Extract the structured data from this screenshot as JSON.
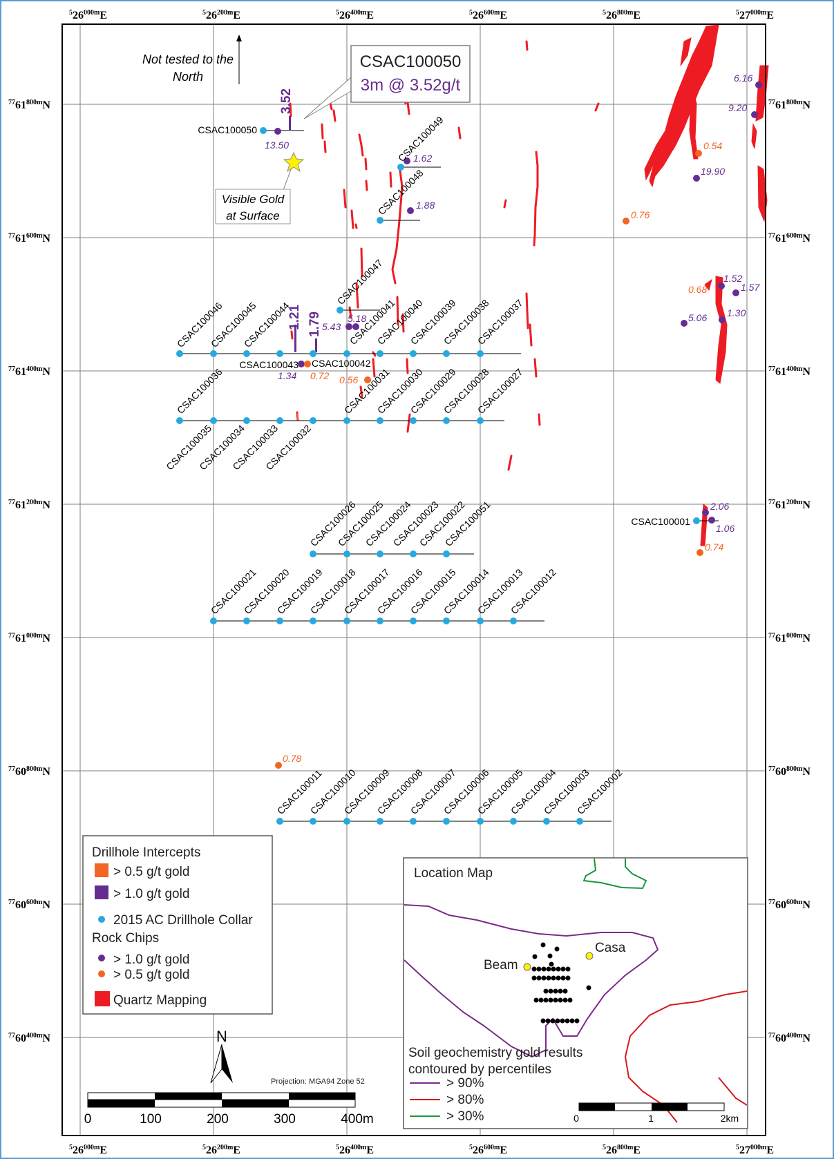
{
  "easting_labels": [
    {
      "prefix": "5",
      "main": "26",
      "sup": "000m",
      "suffix": "E"
    },
    {
      "prefix": "5",
      "main": "26",
      "sup": "200m",
      "suffix": "E"
    },
    {
      "prefix": "5",
      "main": "26",
      "sup": "400m",
      "suffix": "E"
    },
    {
      "prefix": "5",
      "main": "26",
      "sup": "600m",
      "suffix": "E"
    },
    {
      "prefix": "5",
      "main": "26",
      "sup": "800m",
      "suffix": "E"
    },
    {
      "prefix": "5",
      "main": "27",
      "sup": "000m",
      "suffix": "E"
    }
  ],
  "northing_labels": [
    {
      "prefix": "77",
      "main": "61",
      "sup": "800m",
      "suffix": "N"
    },
    {
      "prefix": "77",
      "main": "61",
      "sup": "600m",
      "suffix": "N"
    },
    {
      "prefix": "77",
      "main": "61",
      "sup": "400m",
      "suffix": "N"
    },
    {
      "prefix": "77",
      "main": "61",
      "sup": "200m",
      "suffix": "N"
    },
    {
      "prefix": "77",
      "main": "61",
      "sup": "000m",
      "suffix": "N"
    },
    {
      "prefix": "77",
      "main": "60",
      "sup": "800m",
      "suffix": "N"
    },
    {
      "prefix": "77",
      "main": "60",
      "sup": "600m",
      "suffix": "N"
    },
    {
      "prefix": "77",
      "main": "60",
      "sup": "400m",
      "suffix": "N"
    }
  ],
  "annotations": {
    "not_tested_line1": "Not tested to the",
    "not_tested_line2": "North",
    "callout_hole": "CSAC100050",
    "callout_result": "3m @ 3.52g/t",
    "visible_gold_line1": "Visible Gold",
    "visible_gold_line2": "at Surface",
    "projection": "Projection: MGA94 Zone 52"
  },
  "drillholes": {
    "row1800": [
      "CSAC100050"
    ],
    "row1720": [
      "CSAC100049",
      "CSAC100048"
    ],
    "row1460_upper": [
      "CSAC100047"
    ],
    "row1420": [
      "CSAC100046",
      "CSAC100045",
      "CSAC100044",
      "CSAC100043",
      "CSAC100042",
      "CSAC100041",
      "CSAC100040",
      "CSAC100039",
      "CSAC100038",
      "CSAC100037"
    ],
    "row1320_top": [
      "CSAC100036",
      "CSAC100031",
      "CSAC100030",
      "CSAC100029",
      "CSAC100028",
      "CSAC100027"
    ],
    "row1320_bottom": [
      "CSAC100035",
      "CSAC100034",
      "CSAC100033",
      "CSAC100032"
    ],
    "row1150": [
      "CSAC100026",
      "CSAC100025",
      "CSAC100024",
      "CSAC100023",
      "CSAC100022",
      "CSAC100051"
    ],
    "row1020": [
      "CSAC100021",
      "CSAC100020",
      "CSAC100019",
      "CSAC100018",
      "CSAC100017",
      "CSAC100016",
      "CSAC100015",
      "CSAC100014",
      "CSAC100013",
      "CSAC100012"
    ],
    "row720": [
      "CSAC100011",
      "CSAC100010",
      "CSAC100009",
      "CSAC100008",
      "CSAC100007",
      "CSAC100006",
      "CSAC100005",
      "CSAC100004",
      "CSAC100003",
      "CSAC100002"
    ],
    "east": "CSAC100001"
  },
  "intercepts": {
    "i352": "3.52",
    "i121": "1.21",
    "i179": "1.79"
  },
  "rock_chips": {
    "v1350": "13.50",
    "v162": "1.62",
    "v188": "1.88",
    "v543": "5.43",
    "v518": "5.18",
    "v134": "1.34",
    "v072": "0.72",
    "v056": "0.56",
    "v616": "6.16",
    "v920": "9.20",
    "v054": "0.54",
    "v1990": "19.90",
    "v076": "0.76",
    "v152": "1.52",
    "v068": "0.68",
    "v157": "1.57",
    "v506": "5.06",
    "v130": "1.30",
    "v206": "2.06",
    "v106": "1.06",
    "v074": "0.74",
    "v078": "0.78"
  },
  "legend": {
    "title": "Drillhole Intercepts",
    "gt05": "> 0.5 g/t gold",
    "gt10": "> 1.0 g/t gold",
    "collar": "2015 AC Drillhole Collar",
    "rock_title": "Rock Chips",
    "rock_gt10": "> 1.0 g/t gold",
    "rock_gt05": "> 0.5 g/t gold",
    "quartz": "Quartz Mapping"
  },
  "scale": {
    "n": "N",
    "t0": "0",
    "t100": "100",
    "t200": "200",
    "t300": "300",
    "t400": "400m"
  },
  "location_map": {
    "title": "Location Map",
    "beam": "Beam",
    "casa": "Casa",
    "soil_line1": "Soil geochemistry gold results",
    "soil_line2": "contoured by percentiles",
    "p90": "> 90%",
    "p80": "> 80%",
    "p30": "> 30%",
    "s0": "0",
    "s1": "1",
    "s2": "2km"
  },
  "colors": {
    "collar": "#25a9e0",
    "purple": "#662d91",
    "orange": "#f26522",
    "quartz": "#ed1c24",
    "p90": "#7b2a8b",
    "p80": "#d7191c",
    "p30": "#1a9641"
  }
}
